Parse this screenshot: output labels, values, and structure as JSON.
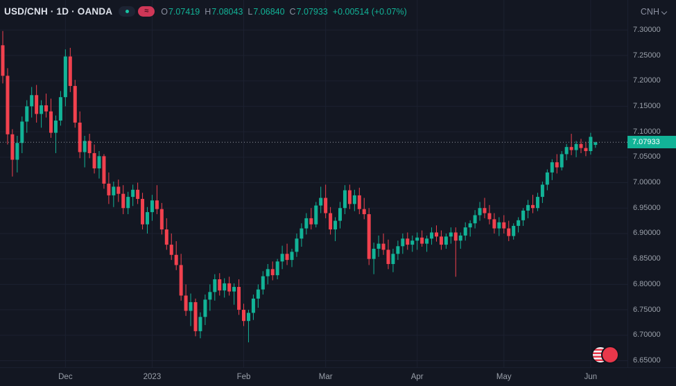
{
  "header": {
    "symbol_title": "USD/CNH · 1D · OANDA",
    "wave_glyph": "≈",
    "ohlc": {
      "open_label": "O",
      "open": "7.07419",
      "high_label": "H",
      "high": "7.08043",
      "low_label": "L",
      "low": "7.06840",
      "close_label": "C",
      "close": "7.07933",
      "change": "+0.00514 (+0.07%)"
    },
    "currency_selector": "CNH"
  },
  "colors": {
    "background": "#131722",
    "up": "#12b397",
    "down": "#f1414e",
    "grid": "#1c2130",
    "axis_text": "#9aa0aa",
    "price_line": "#9598a1",
    "last_price_bg": "#12b397",
    "legend_text": "#dde1ea"
  },
  "chart_data": {
    "type": "candlestick",
    "title": "USD/CNH · 1D · OANDA",
    "symbol": "USD/CNH",
    "interval": "1D",
    "exchange": "OANDA",
    "legend_ohlc": {
      "open": 7.07419,
      "high": 7.08043,
      "low": 7.0684,
      "close": 7.07933,
      "change_abs": "+0.00514",
      "change_pct": "+0.07%"
    },
    "y_ticks": [
      7.3,
      7.25,
      7.2,
      7.15,
      7.1,
      7.05,
      7.0,
      6.95,
      6.9,
      6.85,
      6.8,
      6.75,
      6.7,
      6.65
    ],
    "y_decimals": 5,
    "y_range": [
      6.637,
      7.359
    ],
    "x_ticks": [
      {
        "label": "Dec",
        "i": 13
      },
      {
        "label": "2023",
        "i": 31
      },
      {
        "label": "Feb",
        "i": 50
      },
      {
        "label": "Mar",
        "i": 67
      },
      {
        "label": "Apr",
        "i": 86
      },
      {
        "label": "May",
        "i": 104
      },
      {
        "label": "Jun",
        "i": 122
      }
    ],
    "x_start": 4,
    "x_step": 6.95,
    "last_price": 7.07933,
    "last_price_label": "7.07933",
    "candles": [
      [
        7.27,
        7.298,
        7.195,
        7.21
      ],
      [
        7.21,
        7.225,
        7.075,
        7.095
      ],
      [
        7.095,
        7.105,
        7.012,
        7.045
      ],
      [
        7.045,
        7.092,
        7.02,
        7.078
      ],
      [
        7.078,
        7.13,
        7.058,
        7.12
      ],
      [
        7.12,
        7.162,
        7.098,
        7.15
      ],
      [
        7.15,
        7.188,
        7.128,
        7.172
      ],
      [
        7.172,
        7.192,
        7.118,
        7.135
      ],
      [
        7.135,
        7.162,
        7.108,
        7.152
      ],
      [
        7.152,
        7.175,
        7.128,
        7.14
      ],
      [
        7.14,
        7.165,
        7.088,
        7.098
      ],
      [
        7.098,
        7.132,
        7.058,
        7.122
      ],
      [
        7.122,
        7.18,
        7.112,
        7.168
      ],
      [
        7.168,
        7.262,
        7.15,
        7.248
      ],
      [
        7.248,
        7.265,
        7.178,
        7.19
      ],
      [
        7.19,
        7.202,
        7.108,
        7.118
      ],
      [
        7.118,
        7.14,
        7.048,
        7.06
      ],
      [
        7.06,
        7.092,
        7.03,
        7.082
      ],
      [
        7.082,
        7.096,
        7.048,
        7.058
      ],
      [
        7.058,
        7.075,
        7.018,
        7.028
      ],
      [
        7.028,
        7.062,
        7.008,
        7.052
      ],
      [
        7.052,
        7.056,
        6.988,
        6.998
      ],
      [
        6.998,
        7.02,
        6.958,
        6.975
      ],
      [
        6.975,
        7.002,
        6.952,
        6.992
      ],
      [
        6.992,
        7.006,
        6.962,
        6.978
      ],
      [
        6.978,
        6.995,
        6.938,
        6.95
      ],
      [
        6.95,
        6.982,
        6.938,
        6.972
      ],
      [
        6.972,
        6.996,
        6.954,
        6.986
      ],
      [
        6.986,
        7.0,
        6.958,
        6.968
      ],
      [
        6.968,
        6.98,
        6.908,
        6.918
      ],
      [
        6.918,
        6.952,
        6.9,
        6.942
      ],
      [
        6.942,
        6.976,
        6.925,
        6.965
      ],
      [
        6.965,
        6.995,
        6.938,
        6.948
      ],
      [
        6.948,
        6.96,
        6.898,
        6.908
      ],
      [
        6.908,
        6.93,
        6.868,
        6.878
      ],
      [
        6.878,
        6.9,
        6.848,
        6.858
      ],
      [
        6.858,
        6.885,
        6.828,
        6.838
      ],
      [
        6.838,
        6.86,
        6.768,
        6.778
      ],
      [
        6.778,
        6.8,
        6.738,
        6.748
      ],
      [
        6.748,
        6.782,
        6.718,
        6.765
      ],
      [
        6.765,
        6.772,
        6.698,
        6.708
      ],
      [
        6.708,
        6.745,
        6.694,
        6.736
      ],
      [
        6.736,
        6.78,
        6.72,
        6.77
      ],
      [
        6.77,
        6.8,
        6.748,
        6.785
      ],
      [
        6.785,
        6.82,
        6.768,
        6.81
      ],
      [
        6.81,
        6.822,
        6.778,
        6.788
      ],
      [
        6.788,
        6.812,
        6.774,
        6.802
      ],
      [
        6.802,
        6.815,
        6.778,
        6.786
      ],
      [
        6.786,
        6.802,
        6.76,
        6.795
      ],
      [
        6.795,
        6.81,
        6.74,
        6.75
      ],
      [
        6.75,
        6.762,
        6.718,
        6.728
      ],
      [
        6.728,
        6.75,
        6.686,
        6.744
      ],
      [
        6.744,
        6.78,
        6.73,
        6.772
      ],
      [
        6.772,
        6.8,
        6.754,
        6.79
      ],
      [
        6.79,
        6.826,
        6.78,
        6.816
      ],
      [
        6.816,
        6.84,
        6.8,
        6.83
      ],
      [
        6.83,
        6.845,
        6.808,
        6.818
      ],
      [
        6.818,
        6.85,
        6.81,
        6.845
      ],
      [
        6.845,
        6.876,
        6.83,
        6.86
      ],
      [
        6.86,
        6.88,
        6.838,
        6.848
      ],
      [
        6.848,
        6.87,
        6.834,
        6.864
      ],
      [
        6.864,
        6.9,
        6.854,
        6.89
      ],
      [
        6.89,
        6.92,
        6.874,
        6.91
      ],
      [
        6.91,
        6.94,
        6.898,
        6.93
      ],
      [
        6.93,
        6.95,
        6.908,
        6.918
      ],
      [
        6.918,
        6.962,
        6.912,
        6.955
      ],
      [
        6.955,
        6.992,
        6.94,
        6.97
      ],
      [
        6.97,
        6.996,
        6.93,
        6.94
      ],
      [
        6.94,
        6.952,
        6.898,
        6.908
      ],
      [
        6.908,
        6.932,
        6.885,
        6.925
      ],
      [
        6.925,
        6.962,
        6.91,
        6.95
      ],
      [
        6.95,
        6.995,
        6.938,
        6.985
      ],
      [
        6.985,
        6.996,
        6.948,
        6.958
      ],
      [
        6.958,
        6.986,
        6.944,
        6.975
      ],
      [
        6.975,
        6.99,
        6.938,
        6.948
      ],
      [
        6.948,
        6.97,
        6.928,
        6.938
      ],
      [
        6.938,
        6.95,
        6.838,
        6.85
      ],
      [
        6.85,
        6.882,
        6.82,
        6.87
      ],
      [
        6.87,
        6.896,
        6.854,
        6.88
      ],
      [
        6.88,
        6.9,
        6.858,
        6.868
      ],
      [
        6.868,
        6.888,
        6.83,
        6.84
      ],
      [
        6.84,
        6.87,
        6.824,
        6.86
      ],
      [
        6.86,
        6.886,
        6.848,
        6.875
      ],
      [
        6.875,
        6.9,
        6.86,
        6.89
      ],
      [
        6.89,
        6.902,
        6.868,
        6.878
      ],
      [
        6.878,
        6.896,
        6.864,
        6.886
      ],
      [
        6.886,
        6.902,
        6.868,
        6.892
      ],
      [
        6.892,
        6.906,
        6.874,
        6.88
      ],
      [
        6.88,
        6.896,
        6.864,
        6.89
      ],
      [
        6.89,
        6.912,
        6.878,
        6.902
      ],
      [
        6.902,
        6.916,
        6.884,
        6.894
      ],
      [
        6.894,
        6.906,
        6.868,
        6.878
      ],
      [
        6.878,
        6.9,
        6.87,
        6.894
      ],
      [
        6.894,
        6.912,
        6.88,
        6.902
      ],
      [
        6.902,
        6.912,
        6.815,
        6.886
      ],
      [
        6.886,
        6.902,
        6.87,
        6.896
      ],
      [
        6.896,
        6.922,
        6.886,
        6.912
      ],
      [
        6.912,
        6.926,
        6.894,
        6.92
      ],
      [
        6.92,
        6.946,
        6.91,
        6.936
      ],
      [
        6.936,
        6.962,
        6.925,
        6.95
      ],
      [
        6.95,
        6.97,
        6.93,
        6.94
      ],
      [
        6.94,
        6.956,
        6.918,
        6.928
      ],
      [
        6.928,
        6.94,
        6.9,
        6.91
      ],
      [
        6.91,
        6.932,
        6.895,
        6.922
      ],
      [
        6.922,
        6.936,
        6.9,
        6.91
      ],
      [
        6.91,
        6.925,
        6.885,
        6.895
      ],
      [
        6.895,
        6.92,
        6.888,
        6.915
      ],
      [
        6.915,
        6.932,
        6.902,
        6.926
      ],
      [
        6.926,
        6.95,
        6.915,
        6.945
      ],
      [
        6.945,
        6.966,
        6.93,
        6.956
      ],
      [
        6.956,
        6.976,
        6.94,
        6.95
      ],
      [
        6.95,
        6.98,
        6.944,
        6.972
      ],
      [
        6.972,
        7.002,
        6.96,
        6.996
      ],
      [
        6.996,
        7.026,
        6.985,
        7.02
      ],
      [
        7.02,
        7.046,
        7.005,
        7.04
      ],
      [
        7.04,
        7.056,
        7.018,
        7.03
      ],
      [
        7.03,
        7.062,
        7.024,
        7.056
      ],
      [
        7.056,
        7.076,
        7.044,
        7.07
      ],
      [
        7.07,
        7.096,
        7.054,
        7.064
      ],
      [
        7.064,
        7.082,
        7.05,
        7.076
      ],
      [
        7.076,
        7.086,
        7.058,
        7.068
      ],
      [
        7.068,
        7.08,
        7.052,
        7.062
      ],
      [
        7.062,
        7.098,
        7.055,
        7.09
      ],
      [
        7.07419,
        7.08043,
        7.0684,
        7.07933
      ]
    ]
  }
}
